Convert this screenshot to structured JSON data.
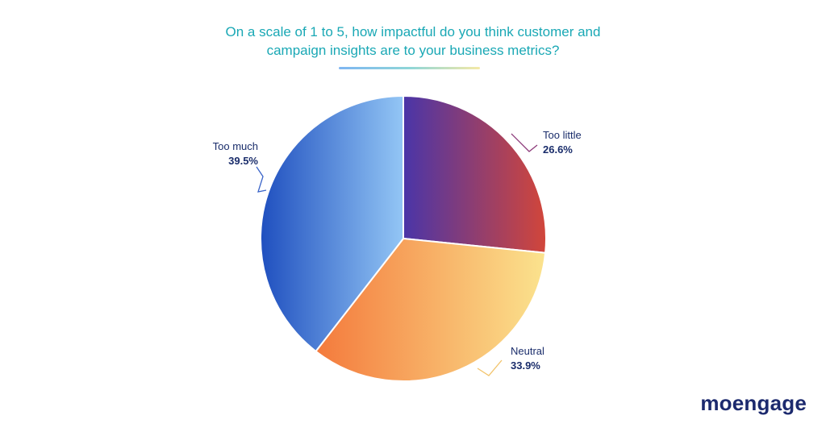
{
  "title_lines": [
    "On a scale of 1 to 5, how impactful do you think customer and",
    "campaign insights are to your business metrics?"
  ],
  "brand": "moengage",
  "colors": {
    "title": "#1aa8b5",
    "label_text": "#1a2d6b",
    "logo": "#1c2a6e",
    "too_little_gradient": [
      "#4a35a8",
      "#d2463a"
    ],
    "neutral_gradient": [
      "#f47a3c",
      "#fbe38e"
    ],
    "too_much_gradient": [
      "#1f4fbf",
      "#93c6f5"
    ]
  },
  "chart_data": {
    "type": "pie",
    "title": "On a scale of 1 to 5, how impactful do you think customer and campaign insights are to your business metrics?",
    "slices": [
      {
        "label": "Too little",
        "value": 26.6,
        "display": "26.6%"
      },
      {
        "label": "Neutral",
        "value": 33.9,
        "display": "33.9%"
      },
      {
        "label": "Too much",
        "value": 39.5,
        "display": "39.5%"
      }
    ],
    "start": "12 o'clock",
    "direction": "clockwise",
    "legend": "none"
  }
}
